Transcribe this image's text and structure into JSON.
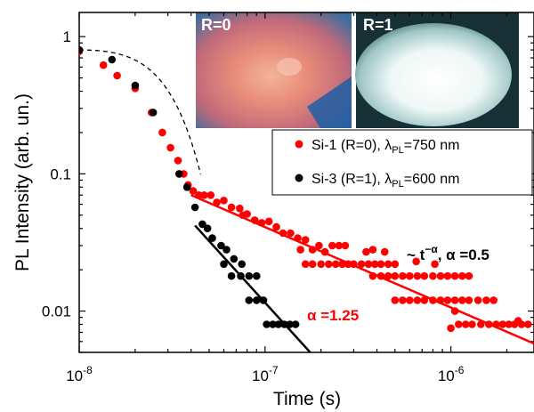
{
  "chart_data": {
    "type": "scatter",
    "xlabel": "Time (s)",
    "ylabel": "PL Intensity (arb. un.)",
    "xscale": "log",
    "yscale": "log",
    "xlim": [
      1e-08,
      2.8e-06
    ],
    "ylim": [
      0.005,
      1.5
    ],
    "xticks": [
      1e-08,
      1e-07,
      1e-06
    ],
    "xtick_labels": [
      {
        "base": "10",
        "exp": "-8"
      },
      {
        "base": "10",
        "exp": "-7"
      },
      {
        "base": "10",
        "exp": "-6"
      }
    ],
    "yticks": [
      1,
      0.1,
      0.01
    ],
    "ytick_labels": [
      "1",
      "0.1",
      "0.01"
    ],
    "legend_position": "upper-right",
    "legend": [
      {
        "pre": "Si-1 (R=0), ",
        "sym": "λ",
        "sub": "PL",
        "post": "=750 nm",
        "color": "#ff0000"
      },
      {
        "pre": "Si-3 (R=1), ",
        "sym": "λ",
        "sub": "PL",
        "post": "=600 nm",
        "color": "#000000"
      }
    ],
    "insets": [
      {
        "label": "R=0"
      },
      {
        "label": "R=1"
      }
    ],
    "annotations": {
      "power_law": {
        "pre": "~ t",
        "sup": "−α",
        "post": ", α =0.5"
      },
      "alpha_red": "α =1.25"
    },
    "series": [
      {
        "color": "#ff0000",
        "points": [
          [
            1e-08,
            0.78
          ],
          [
            1.35e-08,
            0.62
          ],
          [
            1.6e-08,
            0.52
          ],
          [
            2e-08,
            0.42
          ],
          [
            2.45e-08,
            0.28
          ],
          [
            2.8e-08,
            0.2
          ],
          [
            3.1e-08,
            0.155
          ],
          [
            3.4e-08,
            0.125
          ],
          [
            3.65e-08,
            0.1
          ],
          [
            3.85e-08,
            0.083
          ],
          [
            4.1e-08,
            0.075
          ],
          [
            4.4e-08,
            0.07
          ],
          [
            4.7e-08,
            0.07
          ],
          [
            5.1e-08,
            0.07
          ],
          [
            5.5e-08,
            0.062
          ],
          [
            6e-08,
            0.064
          ],
          [
            6.6e-08,
            0.057
          ],
          [
            7.3e-08,
            0.056
          ],
          [
            7.6e-08,
            0.05
          ],
          [
            8e-08,
            0.051
          ],
          [
            8.8e-08,
            0.046
          ],
          [
            9.6e-08,
            0.044
          ],
          [
            1.05e-07,
            0.045
          ],
          [
            1.15e-07,
            0.041
          ],
          [
            1.25e-07,
            0.037
          ],
          [
            1.37e-07,
            0.037
          ],
          [
            1.5e-07,
            0.034
          ],
          [
            1.55e-07,
            0.028
          ],
          [
            1.65e-07,
            0.033
          ],
          [
            1.8e-07,
            0.028
          ],
          [
            1.95e-07,
            0.03
          ],
          [
            2.1e-07,
            0.027
          ],
          [
            2.3e-07,
            0.03
          ],
          [
            2.5e-07,
            0.03
          ],
          [
            1.65e-07,
            0.022
          ],
          [
            1.8e-07,
            0.022
          ],
          [
            2e-07,
            0.022
          ],
          [
            2.2e-07,
            0.022
          ],
          [
            2.4e-07,
            0.022
          ],
          [
            2.6e-07,
            0.022
          ],
          [
            2.8e-07,
            0.022
          ],
          [
            3e-07,
            0.022
          ],
          [
            3.3e-07,
            0.022
          ],
          [
            3.6e-07,
            0.022
          ],
          [
            3.9e-07,
            0.022
          ],
          [
            4.2e-07,
            0.022
          ],
          [
            4.6e-07,
            0.022
          ],
          [
            5e-07,
            0.022
          ],
          [
            2.7e-07,
            0.03
          ],
          [
            3.5e-07,
            0.027
          ],
          [
            3.8e-07,
            0.028
          ],
          [
            4.4e-07,
            0.027
          ],
          [
            3.8e-07,
            0.018
          ],
          [
            4.2e-07,
            0.018
          ],
          [
            4.6e-07,
            0.018
          ],
          [
            5e-07,
            0.018
          ],
          [
            5.5e-07,
            0.018
          ],
          [
            6e-07,
            0.018
          ],
          [
            6.6e-07,
            0.018
          ],
          [
            7.2e-07,
            0.018
          ],
          [
            8e-07,
            0.018
          ],
          [
            8.8e-07,
            0.018
          ],
          [
            9.6e-07,
            0.018
          ],
          [
            1.05e-06,
            0.018
          ],
          [
            1.15e-06,
            0.018
          ],
          [
            1.25e-06,
            0.018
          ],
          [
            6.5e-07,
            0.023
          ],
          [
            8.2e-07,
            0.022
          ],
          [
            5e-07,
            0.012
          ],
          [
            5.5e-07,
            0.012
          ],
          [
            6e-07,
            0.012
          ],
          [
            6.6e-07,
            0.012
          ],
          [
            7.2e-07,
            0.012
          ],
          [
            8e-07,
            0.012
          ],
          [
            8.8e-07,
            0.012
          ],
          [
            9.6e-07,
            0.012
          ],
          [
            1.05e-06,
            0.012
          ],
          [
            1.15e-06,
            0.012
          ],
          [
            1.25e-06,
            0.012
          ],
          [
            1.4e-06,
            0.012
          ],
          [
            1.55e-06,
            0.012
          ],
          [
            1.7e-06,
            0.012
          ],
          [
            1.1e-06,
            0.008
          ],
          [
            1.2e-06,
            0.008
          ],
          [
            1.3e-06,
            0.008
          ],
          [
            1.45e-06,
            0.008
          ],
          [
            1.6e-06,
            0.008
          ],
          [
            1.75e-06,
            0.008
          ],
          [
            1.9e-06,
            0.008
          ],
          [
            2.05e-06,
            0.008
          ],
          [
            2.2e-06,
            0.008
          ],
          [
            2.4e-06,
            0.008
          ],
          [
            2.6e-06,
            0.008
          ],
          [
            1e-06,
            0.0075
          ],
          [
            1.05e-06,
            0.01
          ],
          [
            2.3e-06,
            0.0085
          ]
        ]
      },
      {
        "color": "#000000",
        "points": [
          [
            1e-08,
            0.8
          ],
          [
            1.5e-08,
            0.68
          ],
          [
            2e-08,
            0.44
          ],
          [
            2.5e-08,
            0.28
          ],
          [
            3.45e-08,
            0.1
          ],
          [
            3.8e-08,
            0.08
          ],
          [
            4.2e-08,
            0.057
          ],
          [
            4.6e-08,
            0.043
          ],
          [
            4.9e-08,
            0.04
          ],
          [
            5.2e-08,
            0.034
          ],
          [
            5.8e-08,
            0.03
          ],
          [
            6.2e-08,
            0.028
          ],
          [
            6.8e-08,
            0.024
          ],
          [
            7.5e-08,
            0.022
          ],
          [
            6e-08,
            0.022
          ],
          [
            6.6e-08,
            0.018
          ],
          [
            7.4e-08,
            0.018
          ],
          [
            8.2e-08,
            0.018
          ],
          [
            9e-08,
            0.018
          ],
          [
            8.2e-08,
            0.012
          ],
          [
            9e-08,
            0.012
          ],
          [
            9.8e-08,
            0.012
          ],
          [
            1.02e-07,
            0.008
          ],
          [
            1.1e-07,
            0.008
          ],
          [
            1.18e-07,
            0.008
          ],
          [
            1.27e-07,
            0.008
          ],
          [
            1.36e-07,
            0.008
          ],
          [
            1.46e-07,
            0.008
          ]
        ]
      }
    ],
    "fits": [
      {
        "color": "#ff0000",
        "x": [
          4e-08,
          2.8e-06
        ],
        "y": [
          0.07,
          0.0058
        ]
      },
      {
        "color": "#000000",
        "x": [
          4.2e-08,
          1.75e-07
        ],
        "y": [
          0.042,
          0.005
        ]
      }
    ],
    "model_curve": {
      "style": "dashed",
      "color": "#000000",
      "tau": 2.3e-08,
      "amplitude": 0.8
    }
  }
}
